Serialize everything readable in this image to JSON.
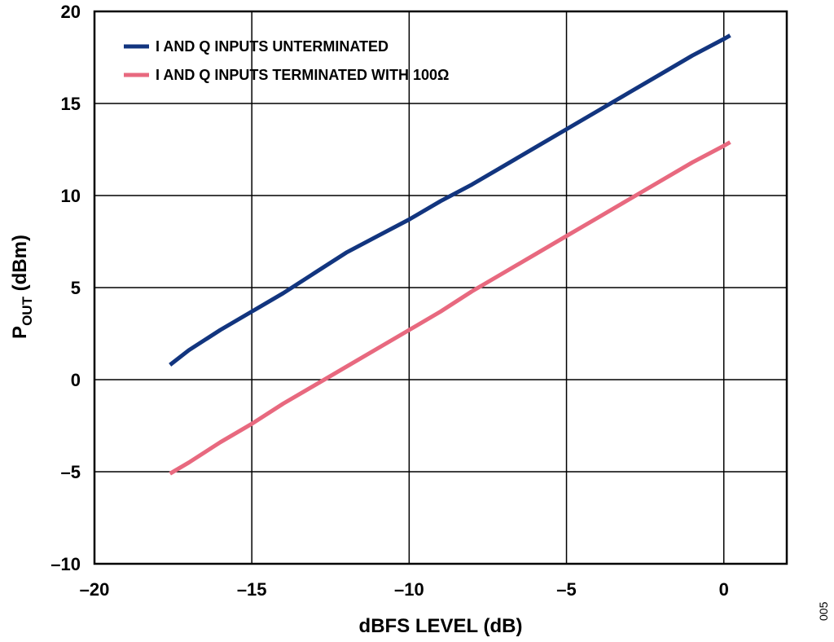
{
  "chart_data": {
    "type": "line",
    "xlabel": "dBFS LEVEL (dB)",
    "ylabel_main": "P",
    "ylabel_sub": "OUT",
    "ylabel_unit": " (dBm)",
    "xlim": [
      -20,
      2
    ],
    "ylim": [
      -10,
      20
    ],
    "x_ticks": [
      -20,
      -15,
      -10,
      -5,
      0
    ],
    "x_tick_labels": [
      "–20",
      "–15",
      "–10",
      "–5",
      "0"
    ],
    "y_ticks": [
      -10,
      -5,
      0,
      5,
      10,
      15,
      20
    ],
    "y_tick_labels": [
      "–10",
      "–5",
      "0",
      "5",
      "10",
      "15",
      "20"
    ],
    "grid": true,
    "legend_position": "top-left",
    "series": [
      {
        "name": "I AND Q INPUTS UNTERMINATED",
        "color": "#12357f",
        "x": [
          -17.6,
          -17,
          -16,
          -15,
          -14,
          -13,
          -12,
          -11,
          -10,
          -9,
          -8,
          -7,
          -6,
          -5,
          -4,
          -3,
          -2,
          -1,
          0,
          0.2
        ],
        "y": [
          0.8,
          1.6,
          2.7,
          3.7,
          4.7,
          5.8,
          6.9,
          7.8,
          8.7,
          9.7,
          10.6,
          11.6,
          12.6,
          13.6,
          14.6,
          15.6,
          16.6,
          17.6,
          18.5,
          18.7
        ]
      },
      {
        "name": "I AND Q INPUTS TERMINATED WITH 100Ω",
        "color": "#e8697f",
        "x": [
          -17.6,
          -17,
          -16,
          -15,
          -14,
          -13,
          -12,
          -11,
          -10,
          -9,
          -8,
          -7,
          -6,
          -5,
          -4,
          -3,
          -2,
          -1,
          0,
          0.2
        ],
        "y": [
          -5.1,
          -4.5,
          -3.4,
          -2.4,
          -1.3,
          -0.3,
          0.7,
          1.7,
          2.7,
          3.7,
          4.8,
          5.8,
          6.8,
          7.8,
          8.8,
          9.8,
          10.8,
          11.8,
          12.7,
          12.9
        ]
      }
    ]
  },
  "figure_id": "005"
}
